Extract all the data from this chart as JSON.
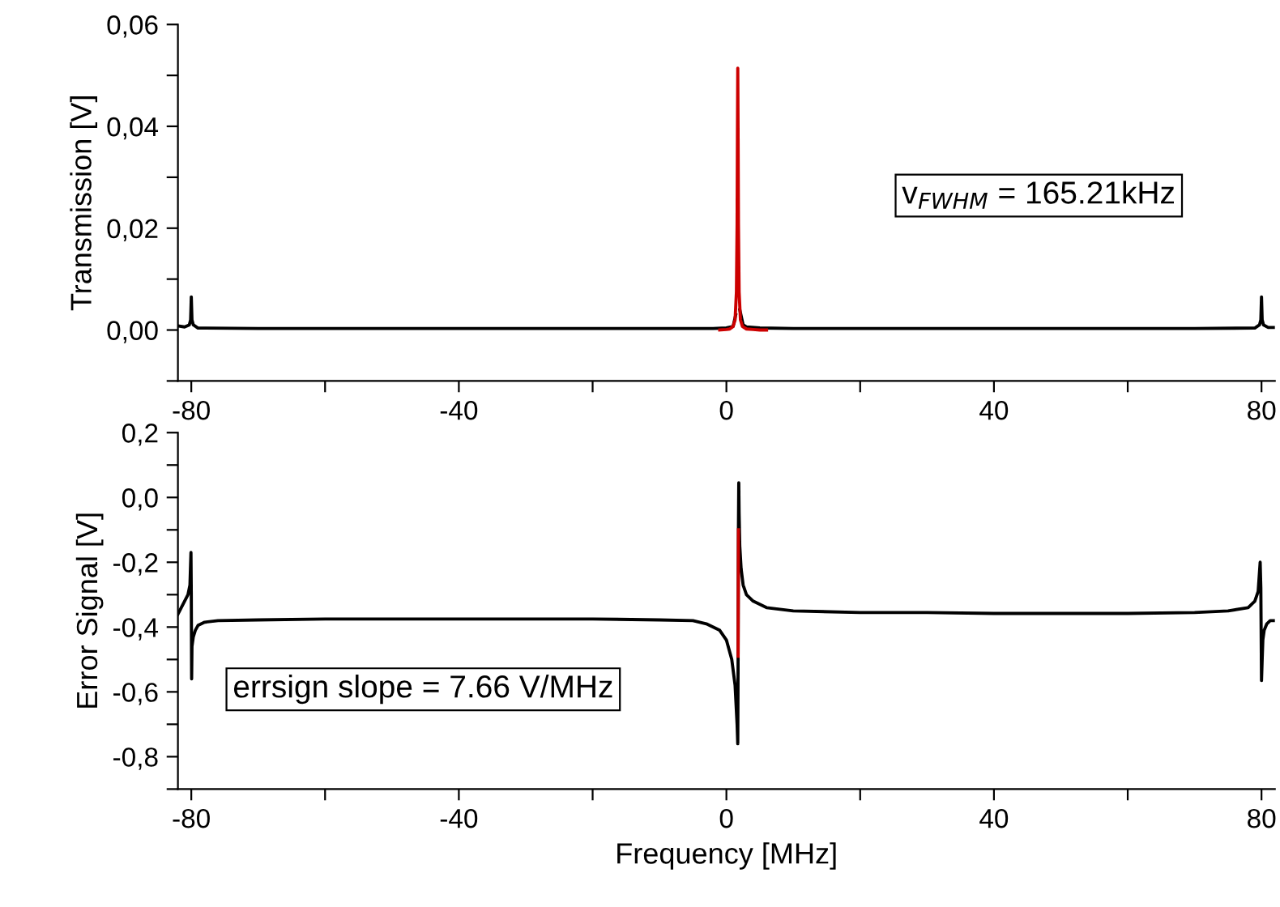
{
  "chart_data": [
    {
      "type": "line",
      "ylabel": "Transmission [V]",
      "xlim": [
        -82,
        82
      ],
      "ylim": [
        -0.01,
        0.06
      ],
      "xticks": [
        -80,
        {
          "value": -60,
          "label": null
        },
        -40,
        {
          "value": -20,
          "label": null
        },
        0,
        {
          "value": 20,
          "label": null
        },
        40,
        {
          "value": 60,
          "label": null
        },
        80
      ],
      "yticks": [
        {
          "value": -0.01,
          "label": null
        },
        {
          "value": 0.0,
          "label": "0,00"
        },
        {
          "value": 0.01,
          "label": null
        },
        {
          "value": 0.02,
          "label": "0,02"
        },
        {
          "value": 0.03,
          "label": null
        },
        {
          "value": 0.04,
          "label": "0,04"
        },
        {
          "value": 0.05,
          "label": null
        },
        {
          "value": 0.06,
          "label": "0,06"
        }
      ],
      "grid": false,
      "legend": false,
      "marker": "none",
      "line_style": "solid",
      "annotations": [
        "v$_{FWHM}$ = 165.21kHz"
      ],
      "series": [
        {
          "color": "#000000",
          "x": [
            -82,
            -81,
            -80.3,
            -80.1,
            -80,
            -79.9,
            -79.7,
            -79,
            -70,
            -60,
            -50,
            -40,
            -30,
            -20,
            -10,
            -2,
            0,
            1,
            1.4,
            1.55,
            1.65,
            1.7,
            1.75,
            1.85,
            2,
            2.5,
            3,
            5,
            10,
            20,
            30,
            40,
            50,
            60,
            70,
            79,
            79.7,
            79.9,
            80,
            80.1,
            80.3,
            81,
            82
          ],
          "values": [
            0.0008,
            0.0006,
            0.001,
            0.002,
            0.0065,
            0.002,
            0.001,
            0.0004,
            0.0003,
            0.0003,
            0.0003,
            0.0003,
            0.0003,
            0.0003,
            0.0003,
            0.0003,
            0.0004,
            0.0007,
            0.003,
            null,
            null,
            null,
            null,
            null,
            0.004,
            0.001,
            0.0006,
            0.0004,
            0.0003,
            0.0003,
            0.0003,
            0.0003,
            0.0003,
            0.0003,
            0.0003,
            0.0004,
            0.001,
            0.002,
            0.0065,
            0.002,
            0.001,
            0.0005,
            0.0005
          ]
        },
        {
          "color": "#cc0000",
          "x": [
            -1,
            0,
            0.5,
            1,
            1.3,
            1.5,
            1.6,
            1.65,
            1.7,
            1.75,
            1.8,
            1.9,
            2.1,
            2.4,
            3,
            4,
            5,
            6
          ],
          "values": [
            0.0,
            0.0001,
            0.0002,
            0.0007,
            0.002,
            0.0075,
            0.0208,
            0.0376,
            0.0514,
            0.0376,
            0.0208,
            0.0075,
            0.002,
            0.0007,
            0.0002,
            0.0001,
            0.0,
            0.0
          ]
        }
      ]
    },
    {
      "type": "line",
      "xlabel": "Frequency [MHz]",
      "ylabel": "Error Signal [V]",
      "xlim": [
        -82,
        82
      ],
      "ylim": [
        -0.9,
        0.2
      ],
      "xticks": [
        -80,
        {
          "value": -60,
          "label": null
        },
        -40,
        {
          "value": -20,
          "label": null
        },
        0,
        {
          "value": 20,
          "label": null
        },
        40,
        {
          "value": 60,
          "label": null
        },
        80
      ],
      "yticks": [
        {
          "value": -0.9,
          "label": null
        },
        {
          "value": -0.8,
          "label": "-0,8"
        },
        {
          "value": -0.7,
          "label": null
        },
        {
          "value": -0.6,
          "label": "-0,6"
        },
        {
          "value": -0.5,
          "label": null
        },
        {
          "value": -0.4,
          "label": "-0,4"
        },
        {
          "value": -0.3,
          "label": null
        },
        {
          "value": -0.2,
          "label": "-0,2"
        },
        {
          "value": -0.1,
          "label": null
        },
        {
          "value": 0.0,
          "label": "0,0"
        },
        {
          "value": 0.1,
          "label": null
        },
        {
          "value": 0.2,
          "label": "0,2"
        }
      ],
      "grid": false,
      "legend": false,
      "marker": "none",
      "line_style": "solid",
      "annotations": [
        "errsign slope = 7.66 V/MHz"
      ],
      "series": [
        {
          "color": "#000000",
          "x": [
            -82,
            -81.5,
            -81,
            -80.5,
            -80.2,
            -80.05,
            -80,
            -79.95,
            -79.9,
            -79.7,
            -79.4,
            -79,
            -78,
            -76,
            -70,
            -60,
            -50,
            -40,
            -30,
            -20,
            -10,
            -5,
            -3,
            -1,
            0,
            0.8,
            1.3,
            1.6,
            1.7,
            1.75,
            1.8,
            1.85,
            1.9,
            2.0,
            2.2,
            2.5,
            3,
            4,
            6,
            10,
            20,
            30,
            40,
            50,
            60,
            70,
            75,
            78,
            79,
            79.5,
            79.8,
            79.9,
            80,
            80.1,
            80.2,
            80.4,
            80.8,
            81.3,
            82
          ],
          "values": [
            -0.36,
            -0.34,
            -0.32,
            -0.3,
            -0.27,
            -0.17,
            -0.3,
            -0.56,
            -0.46,
            -0.43,
            -0.41,
            -0.395,
            -0.385,
            -0.38,
            -0.378,
            -0.375,
            -0.375,
            -0.375,
            -0.375,
            -0.375,
            -0.378,
            -0.38,
            -0.39,
            -0.41,
            -0.44,
            -0.5,
            -0.58,
            -0.7,
            -0.76,
            -0.5,
            -0.1,
            0.045,
            -0.05,
            -0.15,
            -0.22,
            -0.27,
            -0.3,
            -0.32,
            -0.34,
            -0.35,
            -0.355,
            -0.355,
            -0.358,
            -0.358,
            -0.358,
            -0.355,
            -0.35,
            -0.34,
            -0.32,
            -0.29,
            -0.2,
            -0.28,
            -0.565,
            -0.5,
            -0.44,
            -0.41,
            -0.39,
            -0.38,
            -0.38
          ]
        },
        {
          "color": "#cc0000",
          "x": [
            1.749,
            1.8
          ],
          "values": [
            -0.49,
            -0.1
          ]
        }
      ]
    }
  ]
}
